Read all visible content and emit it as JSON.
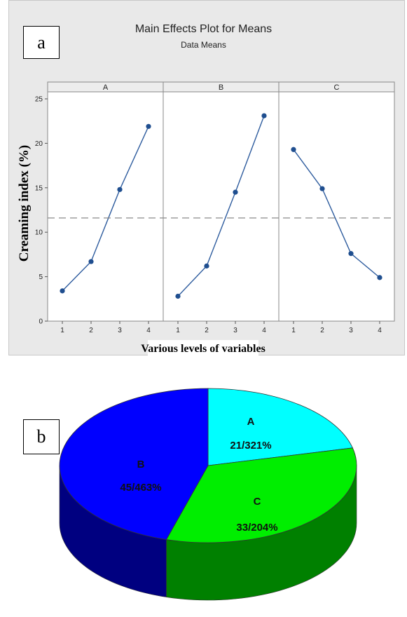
{
  "panel_labels": {
    "a": "a",
    "b": "b"
  },
  "chart_data": [
    {
      "type": "line",
      "title": "Main Effects Plot for Means",
      "subtitle": "Data Means",
      "ylabel": "Creaming index (%)",
      "xlabel": "Various levels of variables",
      "ylim": [
        0,
        25
      ],
      "yticks": [
        0,
        5,
        10,
        15,
        20,
        25
      ],
      "x": [
        1,
        2,
        3,
        4
      ],
      "mean_reference_line": 11.6,
      "grid": false,
      "series": [
        {
          "name": "A",
          "values": [
            3.4,
            6.7,
            14.8,
            21.9
          ]
        },
        {
          "name": "B",
          "values": [
            2.8,
            6.2,
            14.5,
            23.1
          ]
        },
        {
          "name": "C",
          "values": [
            19.3,
            14.9,
            7.6,
            4.9
          ]
        }
      ],
      "colors": {
        "line": "#2e5c9e",
        "marker": "#1f4e8f",
        "reference": "#8a8a8a",
        "background": "#e9e9e9",
        "plot_area": "#ffffff"
      }
    },
    {
      "type": "pie",
      "style": "3d",
      "slices": [
        {
          "category": "A",
          "label": "21/321%",
          "value": 21.321,
          "color": "#00ffff",
          "side_color": "#00aaaa"
        },
        {
          "category": "C",
          "label": "33/204%",
          "value": 33.204,
          "color": "#00ee00",
          "side_color": "#008000"
        },
        {
          "category": "B",
          "label": "45/463%",
          "value": 45.463,
          "color": "#0000ff",
          "side_color": "#000080"
        }
      ]
    }
  ]
}
